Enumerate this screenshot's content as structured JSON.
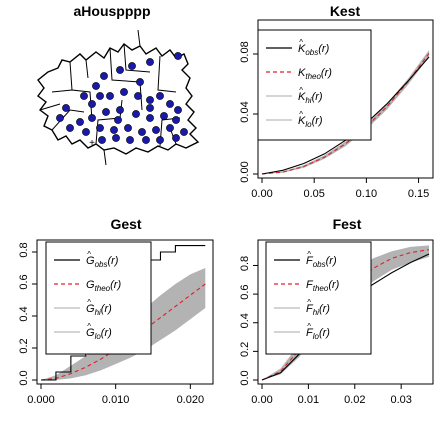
{
  "chart_data": [
    {
      "type": "map",
      "title": "aHouspppp",
      "marks": "polygon-outline-with-points",
      "point_color": "#1a1aaa"
    },
    {
      "type": "line",
      "title": "Kest",
      "x_ticks": [
        "0.00",
        "0.05",
        "0.10",
        "0.15"
      ],
      "y_ticks": [
        "0.00",
        "0.04",
        "0.08"
      ],
      "xlim": [
        0,
        0.16
      ],
      "ylim": [
        0,
        0.1
      ],
      "legend": {
        "placement": "top-left",
        "entries": [
          {
            "hat": true,
            "base": "K",
            "sub": "obs",
            "arg": "(r)",
            "style": "solid",
            "color": "#000000"
          },
          {
            "hat": false,
            "base": "K",
            "sub": "theo",
            "arg": "(r)",
            "style": "dashed",
            "color": "#e0202a"
          },
          {
            "hat": true,
            "base": "K",
            "sub": "hi",
            "arg": "(r)",
            "style": "solid",
            "color": "#bbbbbb"
          },
          {
            "hat": true,
            "base": "K",
            "sub": "lo",
            "arg": "(r)",
            "style": "solid",
            "color": "#bbbbbb"
          }
        ]
      },
      "series": [
        {
          "role": "obs",
          "x": [
            0,
            0.02,
            0.04,
            0.06,
            0.08,
            0.1,
            0.12,
            0.14,
            0.16
          ],
          "y": [
            0,
            0.0025,
            0.007,
            0.0135,
            0.0225,
            0.034,
            0.047,
            0.062,
            0.078
          ]
        },
        {
          "role": "theo",
          "x": [
            0,
            0.02,
            0.04,
            0.06,
            0.08,
            0.1,
            0.12,
            0.14,
            0.16
          ],
          "y": [
            0,
            0.0013,
            0.005,
            0.0113,
            0.0201,
            0.0314,
            0.0452,
            0.0616,
            0.0804
          ]
        },
        {
          "role": "hi",
          "x": [
            0,
            0.02,
            0.04,
            0.06,
            0.08,
            0.1,
            0.12,
            0.14,
            0.16
          ],
          "y": [
            0,
            0.0017,
            0.0058,
            0.0125,
            0.0216,
            0.0331,
            0.0471,
            0.0636,
            0.0826
          ]
        },
        {
          "role": "lo",
          "x": [
            0,
            0.02,
            0.04,
            0.06,
            0.08,
            0.1,
            0.12,
            0.14,
            0.16
          ],
          "y": [
            0,
            0.0009,
            0.0042,
            0.0101,
            0.0186,
            0.0297,
            0.0433,
            0.0596,
            0.0782
          ]
        }
      ]
    },
    {
      "type": "line",
      "title": "Gest",
      "x_ticks": [
        "0.000",
        "0.010",
        "0.020"
      ],
      "y_ticks": [
        "0.0",
        "0.2",
        "0.4",
        "0.6",
        "0.8"
      ],
      "xlim": [
        0,
        0.0225
      ],
      "ylim": [
        0,
        0.85
      ],
      "legend": {
        "placement": "top-left",
        "entries": [
          {
            "hat": true,
            "base": "G",
            "sub": "obs",
            "arg": "(r)",
            "style": "solid",
            "color": "#000000"
          },
          {
            "hat": false,
            "base": "G",
            "sub": "theo",
            "arg": "(r)",
            "style": "dashed",
            "color": "#e0202a"
          },
          {
            "hat": true,
            "base": "G",
            "sub": "hi",
            "arg": "(r)",
            "style": "solid",
            "color": "#bbbbbb"
          },
          {
            "hat": true,
            "base": "G",
            "sub": "lo",
            "arg": "(r)",
            "style": "solid",
            "color": "#bbbbbb"
          }
        ]
      },
      "series": [
        {
          "role": "obs",
          "x": [
            0,
            0.002,
            0.004,
            0.006,
            0.008,
            0.01,
            0.012,
            0.014,
            0.016,
            0.018,
            0.02,
            0.022
          ],
          "y": [
            0,
            0.05,
            0.15,
            0.3,
            0.43,
            0.56,
            0.66,
            0.75,
            0.8,
            0.84,
            0.84,
            0.84
          ]
        },
        {
          "role": "theo",
          "x": [
            0,
            0.002,
            0.004,
            0.006,
            0.008,
            0.01,
            0.012,
            0.014,
            0.016,
            0.018,
            0.02,
            0.022
          ],
          "y": [
            0,
            0.01,
            0.04,
            0.08,
            0.13,
            0.19,
            0.25,
            0.32,
            0.39,
            0.46,
            0.53,
            0.6
          ]
        },
        {
          "role": "hi",
          "x": [
            0,
            0.002,
            0.004,
            0.006,
            0.008,
            0.01,
            0.012,
            0.014,
            0.016,
            0.018,
            0.02,
            0.022
          ],
          "y": [
            0,
            0.03,
            0.09,
            0.15,
            0.22,
            0.3,
            0.38,
            0.45,
            0.53,
            0.6,
            0.66,
            0.7
          ]
        },
        {
          "role": "lo",
          "x": [
            0,
            0.002,
            0.004,
            0.006,
            0.008,
            0.01,
            0.012,
            0.014,
            0.016,
            0.018,
            0.02,
            0.022
          ],
          "y": [
            0,
            0,
            0.01,
            0.03,
            0.06,
            0.1,
            0.14,
            0.19,
            0.25,
            0.31,
            0.38,
            0.45
          ]
        }
      ]
    },
    {
      "type": "line",
      "title": "Fest",
      "x_ticks": [
        "0.00",
        "0.01",
        "0.02",
        "0.03"
      ],
      "y_ticks": [
        "0.0",
        "0.2",
        "0.4",
        "0.6",
        "0.8"
      ],
      "xlim": [
        0,
        0.036
      ],
      "ylim": [
        0,
        0.95
      ],
      "legend": {
        "placement": "top-left",
        "entries": [
          {
            "hat": true,
            "base": "F",
            "sub": "obs",
            "arg": "(r)",
            "style": "solid",
            "color": "#000000"
          },
          {
            "hat": false,
            "base": "F",
            "sub": "theo",
            "arg": "(r)",
            "style": "dashed",
            "color": "#e0202a"
          },
          {
            "hat": true,
            "base": "F",
            "sub": "hi",
            "arg": "(r)",
            "style": "solid",
            "color": "#bbbbbb"
          },
          {
            "hat": true,
            "base": "F",
            "sub": "lo",
            "arg": "(r)",
            "style": "solid",
            "color": "#bbbbbb"
          }
        ]
      },
      "series": [
        {
          "role": "obs",
          "x": [
            0,
            0.004,
            0.008,
            0.012,
            0.016,
            0.02,
            0.024,
            0.028,
            0.032,
            0.036
          ],
          "y": [
            0,
            0.05,
            0.18,
            0.35,
            0.48,
            0.58,
            0.67,
            0.75,
            0.82,
            0.88
          ]
        },
        {
          "role": "theo",
          "x": [
            0,
            0.004,
            0.008,
            0.012,
            0.016,
            0.02,
            0.024,
            0.028,
            0.032,
            0.036
          ],
          "y": [
            0,
            0.06,
            0.21,
            0.39,
            0.55,
            0.68,
            0.78,
            0.85,
            0.89,
            0.91
          ]
        },
        {
          "role": "hi",
          "x": [
            0,
            0.004,
            0.008,
            0.012,
            0.016,
            0.02,
            0.024,
            0.028,
            0.032,
            0.036
          ],
          "y": [
            0,
            0.08,
            0.25,
            0.46,
            0.63,
            0.76,
            0.85,
            0.9,
            0.93,
            0.94
          ]
        },
        {
          "role": "lo",
          "x": [
            0,
            0.004,
            0.008,
            0.012,
            0.016,
            0.02,
            0.024,
            0.028,
            0.032,
            0.036
          ],
          "y": [
            0,
            0.04,
            0.16,
            0.32,
            0.47,
            0.59,
            0.69,
            0.77,
            0.82,
            0.86
          ]
        }
      ]
    }
  ]
}
